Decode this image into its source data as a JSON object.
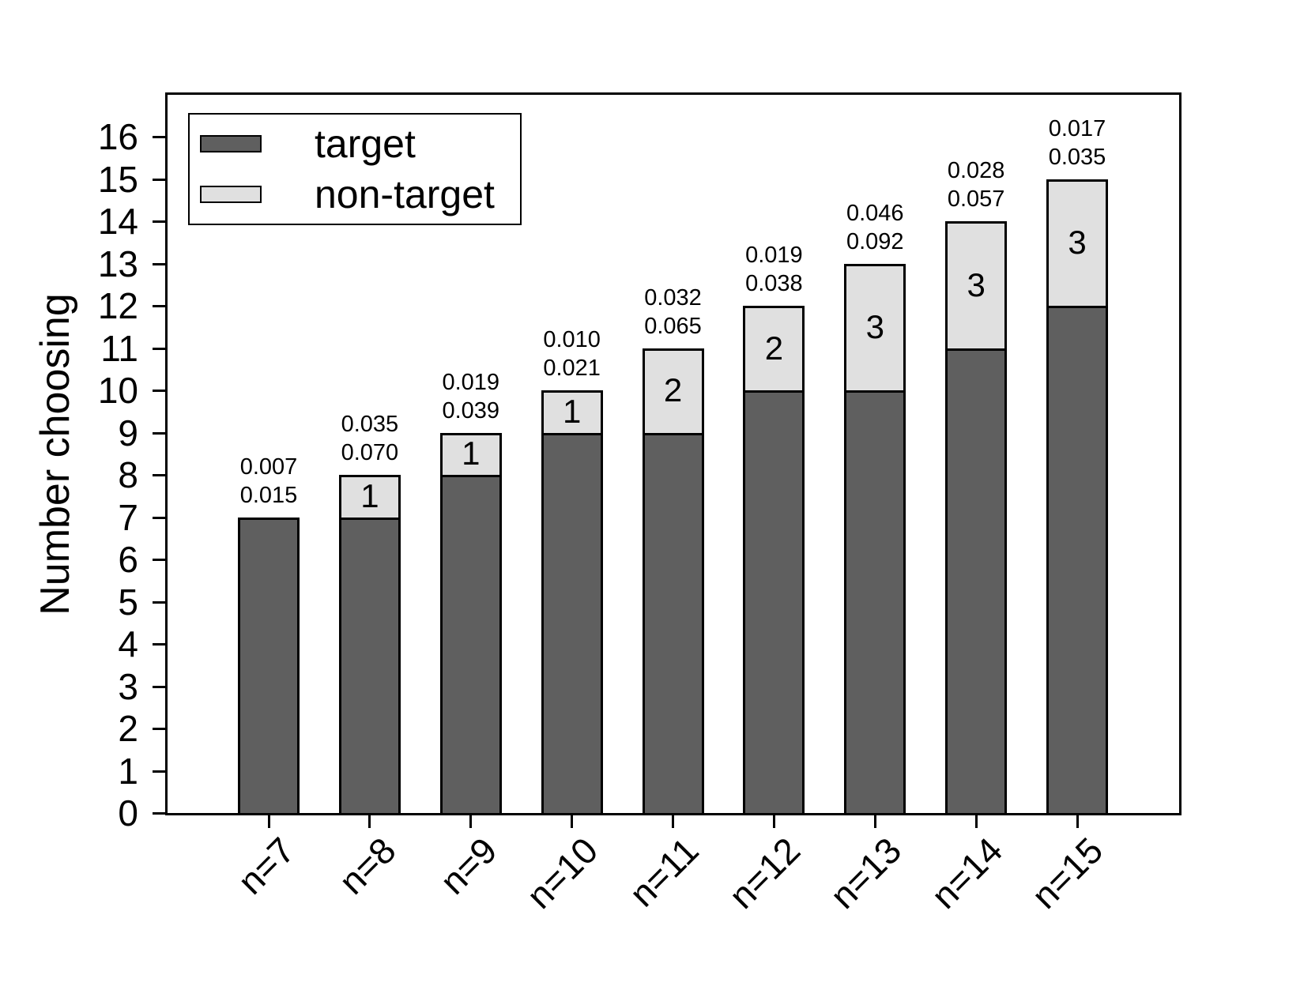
{
  "figure": {
    "background": "#ffffff"
  },
  "legend": {
    "items": [
      {
        "label": "target",
        "color": "#5f5f5f"
      },
      {
        "label": "non-target",
        "color": "#e0e0e0"
      }
    ]
  },
  "chart_data": {
    "type": "bar",
    "stacked": true,
    "title": "",
    "xlabel": "",
    "ylabel": "Number choosing",
    "ylim": [
      0,
      17
    ],
    "yticks": [
      0,
      1,
      2,
      3,
      4,
      5,
      6,
      7,
      8,
      9,
      10,
      11,
      12,
      13,
      14,
      15,
      16
    ],
    "grid": false,
    "legend_position": "upper-left",
    "categories": [
      "n=7",
      "n=8",
      "n=9",
      "n=10",
      "n=11",
      "n=12",
      "n=13",
      "n=14",
      "n=15"
    ],
    "series": [
      {
        "name": "target",
        "color": "#5f5f5f",
        "values": [
          7,
          7,
          8,
          9,
          9,
          10,
          10,
          11,
          12
        ]
      },
      {
        "name": "non-target",
        "color": "#e0e0e0",
        "values": [
          0,
          1,
          1,
          1,
          2,
          2,
          3,
          3,
          3
        ]
      }
    ],
    "totals": [
      7,
      8,
      9,
      10,
      11,
      12,
      13,
      14,
      15
    ],
    "segment_count_labels": [
      "",
      "1",
      "1",
      "1",
      "2",
      "2",
      "3",
      "3",
      "3"
    ],
    "bar_annotations": [
      [
        "0.007",
        "0.015"
      ],
      [
        "0.035",
        "0.070"
      ],
      [
        "0.019",
        "0.039"
      ],
      [
        "0.010",
        "0.021"
      ],
      [
        "0.032",
        "0.065"
      ],
      [
        "0.019",
        "0.038"
      ],
      [
        "0.046",
        "0.092"
      ],
      [
        "0.028",
        "0.057"
      ],
      [
        "0.017",
        "0.035"
      ]
    ]
  }
}
